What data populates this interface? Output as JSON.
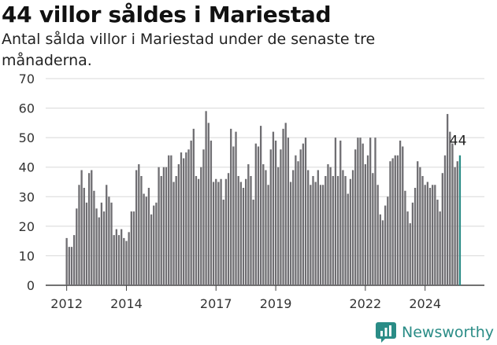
{
  "header": {
    "title": "44 villor såldes i Mariestad",
    "subtitle": "Antal sålda villor i Mariestad under de senaste tre månaderna."
  },
  "brand": {
    "name": "Newsworthy"
  },
  "colors": {
    "bar": "#6f6e72",
    "highlight": "#2a8c86",
    "grid": "#d8d8d8",
    "axis": "#444444"
  },
  "chart_data": {
    "type": "bar",
    "title": "44 villor såldes i Mariestad",
    "subtitle": "Antal sålda villor i Mariestad under de senaste tre månaderna.",
    "start": "2012-01",
    "frequency": "monthly",
    "ylim": [
      0,
      70
    ],
    "yticks": [
      0,
      10,
      20,
      30,
      40,
      50,
      60,
      70
    ],
    "xticks": [
      "2012",
      "2014",
      "2017",
      "2019",
      "2022",
      "2024"
    ],
    "grid": true,
    "highlight_label": "44",
    "values": [
      16,
      13,
      13,
      17,
      26,
      34,
      39,
      33,
      28,
      38,
      39,
      32,
      26,
      23,
      28,
      25,
      34,
      30,
      28,
      17,
      19,
      17,
      19,
      16,
      15,
      18,
      25,
      25,
      39,
      41,
      37,
      31,
      30,
      33,
      24,
      27,
      28,
      40,
      37,
      40,
      40,
      44,
      44,
      35,
      37,
      41,
      45,
      43,
      45,
      46,
      49,
      53,
      37,
      36,
      40,
      46,
      59,
      55,
      49,
      35,
      36,
      35,
      36,
      29,
      36,
      38,
      53,
      47,
      52,
      37,
      35,
      33,
      36,
      41,
      37,
      29,
      48,
      47,
      54,
      41,
      39,
      34,
      46,
      52,
      49,
      40,
      46,
      53,
      55,
      50,
      35,
      39,
      44,
      42,
      46,
      48,
      50,
      39,
      34,
      37,
      35,
      39,
      34,
      34,
      37,
      41,
      40,
      37,
      50,
      37,
      49,
      39,
      37,
      31,
      36,
      39,
      46,
      50,
      50,
      48,
      41,
      44,
      50,
      38,
      50,
      34,
      24,
      22,
      27,
      30,
      42,
      43,
      44,
      44,
      49,
      47,
      32,
      25,
      21,
      28,
      33,
      42,
      40,
      37,
      34,
      35,
      33,
      34,
      34,
      29,
      25,
      38,
      44,
      58,
      52,
      48,
      40,
      42,
      44
    ]
  }
}
